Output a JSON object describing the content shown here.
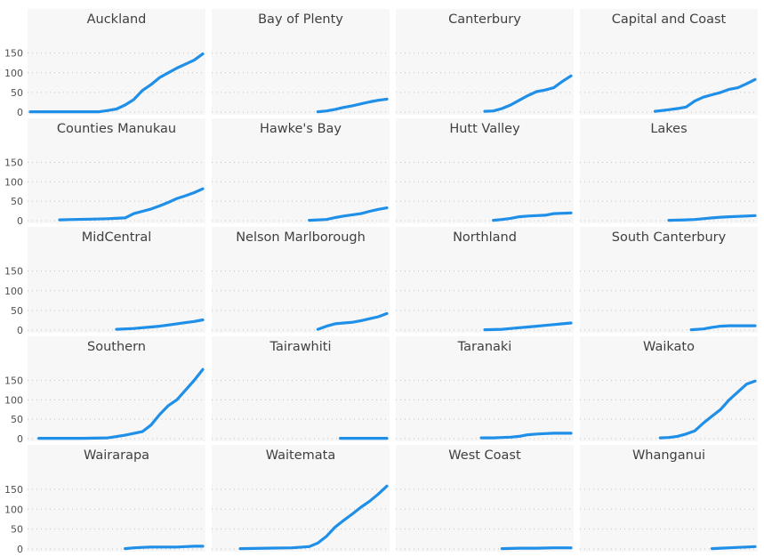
{
  "chart_data": {
    "type": "line",
    "layout": "small-multiples",
    "ylim": [
      0,
      190
    ],
    "yticks": [
      0,
      50,
      100,
      150
    ],
    "grid": "horizontal-dotted",
    "xlim": [
      0,
      100
    ],
    "line_color": "#1f8fe8",
    "panel_bg": "#f7f7f7",
    "panels": [
      {
        "title": "Auckland",
        "x": [
          0,
          40,
          45,
          50,
          55,
          60,
          65,
          70,
          75,
          80,
          85,
          90,
          95,
          100
        ],
        "y": [
          1,
          1,
          4,
          8,
          18,
          32,
          55,
          70,
          88,
          100,
          112,
          122,
          132,
          148
        ]
      },
      {
        "title": "Bay of Plenty",
        "x": [
          60,
          65,
          70,
          75,
          80,
          85,
          90,
          95,
          100
        ],
        "y": [
          1,
          3,
          7,
          12,
          16,
          21,
          26,
          30,
          33
        ]
      },
      {
        "title": "Canterbury",
        "x": [
          50,
          55,
          60,
          65,
          70,
          75,
          80,
          85,
          90,
          95,
          100
        ],
        "y": [
          2,
          3,
          9,
          18,
          30,
          42,
          52,
          56,
          62,
          78,
          92
        ]
      },
      {
        "title": "Capital and Coast",
        "x": [
          42,
          50,
          55,
          60,
          65,
          70,
          75,
          80,
          85,
          90,
          95,
          100
        ],
        "y": [
          2,
          6,
          9,
          13,
          28,
          38,
          44,
          50,
          58,
          62,
          72,
          83
        ]
      },
      {
        "title": "Counties Manukau",
        "x": [
          17,
          25,
          35,
          45,
          55,
          60,
          65,
          70,
          75,
          80,
          85,
          90,
          95,
          100
        ],
        "y": [
          2,
          3,
          4,
          5,
          7,
          18,
          24,
          30,
          38,
          47,
          57,
          64,
          72,
          82
        ]
      },
      {
        "title": "Hawke's Bay",
        "x": [
          55,
          65,
          70,
          75,
          80,
          85,
          90,
          95,
          100
        ],
        "y": [
          1,
          3,
          8,
          12,
          15,
          18,
          24,
          29,
          33
        ]
      },
      {
        "title": "Hutt Valley",
        "x": [
          55,
          60,
          65,
          70,
          75,
          80,
          85,
          90,
          95,
          100
        ],
        "y": [
          1,
          3,
          6,
          10,
          12,
          13,
          14,
          18,
          19,
          20
        ]
      },
      {
        "title": "Lakes",
        "x": [
          50,
          60,
          65,
          70,
          75,
          80,
          85,
          90,
          95,
          100
        ],
        "y": [
          1,
          2,
          3,
          5,
          7,
          9,
          10,
          11,
          12,
          13
        ]
      },
      {
        "title": "MidCentral",
        "x": [
          50,
          60,
          65,
          70,
          75,
          80,
          85,
          90,
          95,
          100
        ],
        "y": [
          2,
          4,
          6,
          8,
          10,
          13,
          16,
          19,
          22,
          26
        ]
      },
      {
        "title": "Nelson Marlborough",
        "x": [
          60,
          65,
          70,
          75,
          80,
          85,
          90,
          95,
          100
        ],
        "y": [
          2,
          10,
          16,
          18,
          20,
          24,
          29,
          34,
          42
        ]
      },
      {
        "title": "Northland",
        "x": [
          50,
          60,
          65,
          70,
          75,
          80,
          85,
          90,
          95,
          100
        ],
        "y": [
          1,
          2,
          4,
          6,
          8,
          10,
          12,
          14,
          16,
          18
        ]
      },
      {
        "title": "South Canterbury",
        "x": [
          63,
          70,
          75,
          80,
          85,
          90,
          95,
          100
        ],
        "y": [
          1,
          3,
          7,
          10,
          11,
          11,
          11,
          11
        ]
      },
      {
        "title": "Southern",
        "x": [
          5,
          30,
          45,
          55,
          65,
          70,
          75,
          80,
          85,
          90,
          95,
          100
        ],
        "y": [
          1,
          1,
          2,
          9,
          18,
          35,
          62,
          85,
          100,
          125,
          150,
          178
        ]
      },
      {
        "title": "Tairawhiti",
        "x": [
          73,
          80,
          85,
          90,
          95,
          100
        ],
        "y": [
          1,
          1,
          1,
          1,
          1,
          1
        ]
      },
      {
        "title": "Taranaki",
        "x": [
          48,
          55,
          60,
          65,
          70,
          75,
          80,
          85,
          90,
          95,
          100
        ],
        "y": [
          2,
          2,
          3,
          4,
          6,
          10,
          12,
          13,
          14,
          14,
          14
        ]
      },
      {
        "title": "Waikato",
        "x": [
          45,
          50,
          55,
          60,
          65,
          70,
          75,
          80,
          85,
          90,
          95,
          100
        ],
        "y": [
          2,
          3,
          6,
          12,
          20,
          40,
          58,
          75,
          100,
          120,
          140,
          148
        ]
      },
      {
        "title": "Wairarapa",
        "x": [
          55,
          60,
          65,
          70,
          75,
          80,
          85,
          90,
          95,
          100
        ],
        "y": [
          1,
          3,
          4,
          5,
          5,
          5,
          5,
          6,
          7,
          7
        ]
      },
      {
        "title": "Waitemata",
        "x": [
          15,
          30,
          45,
          55,
          60,
          65,
          70,
          75,
          80,
          85,
          90,
          95,
          100
        ],
        "y": [
          1,
          2,
          3,
          6,
          15,
          32,
          55,
          72,
          88,
          105,
          120,
          138,
          158
        ]
      },
      {
        "title": "West Coast",
        "x": [
          60,
          70,
          80,
          90,
          100
        ],
        "y": [
          1,
          2,
          2,
          3,
          3
        ]
      },
      {
        "title": "Whanganui",
        "x": [
          75,
          80,
          85,
          90,
          95,
          100
        ],
        "y": [
          1,
          2,
          3,
          4,
          5,
          6
        ]
      }
    ]
  }
}
